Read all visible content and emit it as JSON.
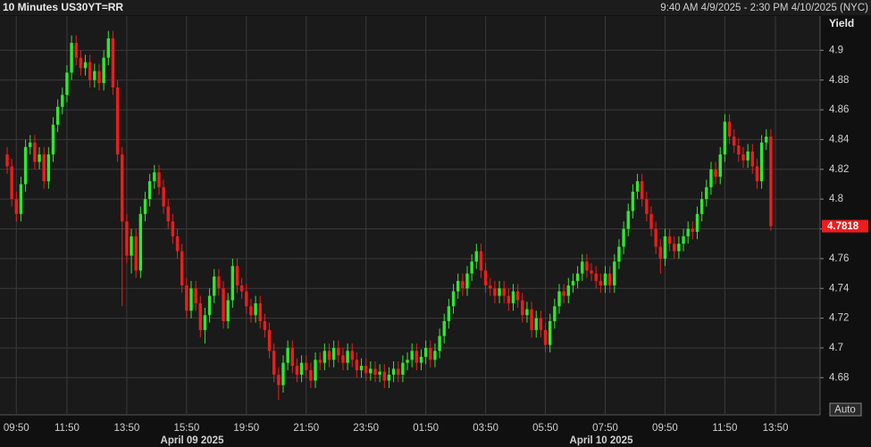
{
  "chart_data": {
    "type": "candlestick",
    "title": "10 Minutes US30YT=RR",
    "subtitle": "9:40 AM 4/9/2025 - 2:30 PM 4/10/2025 (NYC)",
    "y_label": "Yield",
    "button": "Auto",
    "up_color": "#2ee82e",
    "down_color": "#ee1c1c",
    "grid": true,
    "ylim": [
      4.655,
      4.923
    ],
    "yticks": [
      4.68,
      4.7,
      4.72,
      4.74,
      4.76,
      4.78,
      4.8,
      4.82,
      4.84,
      4.86,
      4.88,
      4.9
    ],
    "last_value": 4.7818,
    "date_labels": [
      "April 09 2025",
      "April 10 2025"
    ],
    "categories": [
      null,
      null,
      "09:50",
      null,
      null,
      null,
      null,
      null,
      null,
      null,
      null,
      null,
      null,
      "11:50",
      null,
      null,
      null,
      null,
      null,
      null,
      null,
      null,
      null,
      null,
      null,
      null,
      "13:50",
      null,
      null,
      null,
      null,
      null,
      null,
      null,
      null,
      null,
      null,
      null,
      null,
      "15:50",
      null,
      null,
      null,
      null,
      null,
      null,
      null,
      null,
      null,
      null,
      null,
      null,
      "19:50",
      null,
      null,
      null,
      null,
      null,
      null,
      null,
      null,
      null,
      null,
      null,
      null,
      "21:50",
      null,
      null,
      null,
      null,
      null,
      null,
      null,
      null,
      null,
      null,
      null,
      null,
      "23:50",
      null,
      null,
      null,
      null,
      null,
      null,
      null,
      null,
      null,
      null,
      null,
      null,
      "01:50",
      null,
      null,
      null,
      null,
      null,
      null,
      null,
      null,
      null,
      null,
      null,
      null,
      "03:50",
      null,
      null,
      null,
      null,
      null,
      null,
      null,
      null,
      null,
      null,
      null,
      null,
      "05:50",
      null,
      null,
      null,
      null,
      null,
      null,
      null,
      null,
      null,
      null,
      null,
      null,
      "07:50",
      null,
      null,
      null,
      null,
      null,
      null,
      null,
      null,
      null,
      null,
      null,
      null,
      "09:50",
      null,
      null,
      null,
      null,
      null,
      null,
      null,
      null,
      null,
      null,
      null,
      null,
      "11:50",
      null,
      null,
      null,
      null,
      null,
      null,
      null,
      null,
      null,
      null,
      "13:50"
    ],
    "ohlc": [
      [
        4.83,
        4.835,
        4.817,
        4.822
      ],
      [
        4.822,
        4.827,
        4.795,
        4.8
      ],
      [
        4.8,
        4.805,
        4.785,
        4.79
      ],
      [
        4.79,
        4.815,
        4.785,
        4.81
      ],
      [
        4.81,
        4.84,
        4.805,
        4.835
      ],
      [
        4.835,
        4.843,
        4.83,
        4.838
      ],
      [
        4.838,
        4.843,
        4.82,
        4.825
      ],
      [
        4.825,
        4.835,
        4.82,
        4.83
      ],
      [
        4.83,
        4.835,
        4.807,
        4.812
      ],
      [
        4.812,
        4.835,
        4.807,
        4.83
      ],
      [
        4.83,
        4.855,
        4.825,
        4.85
      ],
      [
        4.85,
        4.867,
        4.845,
        4.862
      ],
      [
        4.862,
        4.875,
        4.857,
        4.87
      ],
      [
        4.87,
        4.89,
        4.865,
        4.885
      ],
      [
        4.885,
        4.91,
        4.88,
        4.905
      ],
      [
        4.905,
        4.91,
        4.89,
        4.895
      ],
      [
        4.895,
        4.9,
        4.883,
        4.888
      ],
      [
        4.888,
        4.897,
        4.883,
        4.892
      ],
      [
        4.892,
        4.897,
        4.875,
        4.88
      ],
      [
        4.88,
        4.891,
        4.875,
        4.886
      ],
      [
        4.886,
        4.891,
        4.873,
        4.878
      ],
      [
        4.878,
        4.9,
        4.873,
        4.895
      ],
      [
        4.895,
        4.913,
        4.89,
        4.908
      ],
      [
        4.908,
        4.913,
        4.87,
        4.875
      ],
      [
        4.875,
        4.88,
        4.825,
        4.83
      ],
      [
        4.83,
        4.835,
        4.728,
        4.785
      ],
      [
        4.785,
        4.79,
        4.757,
        4.762
      ],
      [
        4.762,
        4.78,
        4.75,
        4.775
      ],
      [
        4.775,
        4.78,
        4.747,
        4.752
      ],
      [
        4.752,
        4.795,
        4.747,
        4.79
      ],
      [
        4.79,
        4.805,
        4.785,
        4.8
      ],
      [
        4.8,
        4.817,
        4.795,
        4.812
      ],
      [
        4.812,
        4.823,
        4.807,
        4.818
      ],
      [
        4.818,
        4.823,
        4.803,
        4.808
      ],
      [
        4.808,
        4.813,
        4.79,
        4.795
      ],
      [
        4.795,
        4.8,
        4.78,
        4.785
      ],
      [
        4.785,
        4.79,
        4.77,
        4.775
      ],
      [
        4.775,
        4.78,
        4.76,
        4.765
      ],
      [
        4.765,
        4.77,
        4.737,
        4.742
      ],
      [
        4.742,
        4.747,
        4.72,
        4.725
      ],
      [
        4.725,
        4.745,
        4.72,
        4.74
      ],
      [
        4.74,
        4.745,
        4.725,
        4.73
      ],
      [
        4.73,
        4.735,
        4.707,
        4.712
      ],
      [
        4.712,
        4.727,
        4.703,
        4.722
      ],
      [
        4.722,
        4.74,
        4.717,
        4.735
      ],
      [
        4.735,
        4.753,
        4.73,
        4.748
      ],
      [
        4.748,
        4.753,
        4.735,
        4.74
      ],
      [
        4.74,
        4.745,
        4.713,
        4.718
      ],
      [
        4.718,
        4.737,
        4.713,
        4.732
      ],
      [
        4.732,
        4.76,
        4.727,
        4.755
      ],
      [
        4.755,
        4.76,
        4.737,
        4.742
      ],
      [
        4.742,
        4.747,
        4.733,
        4.738
      ],
      [
        4.738,
        4.743,
        4.723,
        4.728
      ],
      [
        4.728,
        4.733,
        4.717,
        4.722
      ],
      [
        4.722,
        4.735,
        4.717,
        4.73
      ],
      [
        4.73,
        4.735,
        4.713,
        4.718
      ],
      [
        4.718,
        4.723,
        4.707,
        4.712
      ],
      [
        4.712,
        4.717,
        4.693,
        4.698
      ],
      [
        4.698,
        4.703,
        4.677,
        4.682
      ],
      [
        4.682,
        4.687,
        4.665,
        4.675
      ],
      [
        4.675,
        4.695,
        4.67,
        4.69
      ],
      [
        4.69,
        4.705,
        4.685,
        4.7
      ],
      [
        4.7,
        4.705,
        4.683,
        4.688
      ],
      [
        4.688,
        4.693,
        4.677,
        4.682
      ],
      [
        4.682,
        4.695,
        4.677,
        4.69
      ],
      [
        4.69,
        4.695,
        4.68,
        4.685
      ],
      [
        4.685,
        4.69,
        4.673,
        4.678
      ],
      [
        4.678,
        4.697,
        4.673,
        4.692
      ],
      [
        4.692,
        4.697,
        4.685,
        4.69
      ],
      [
        4.69,
        4.703,
        4.685,
        4.698
      ],
      [
        4.698,
        4.703,
        4.687,
        4.692
      ],
      [
        4.692,
        4.705,
        4.687,
        4.7
      ],
      [
        4.7,
        4.705,
        4.69,
        4.695
      ],
      [
        4.695,
        4.7,
        4.685,
        4.69
      ],
      [
        4.69,
        4.703,
        4.685,
        4.698
      ],
      [
        4.698,
        4.703,
        4.687,
        4.692
      ],
      [
        4.692,
        4.697,
        4.68,
        4.685
      ],
      [
        4.685,
        4.693,
        4.68,
        4.688
      ],
      [
        4.688,
        4.693,
        4.678,
        4.683
      ],
      [
        4.683,
        4.691,
        4.678,
        4.686
      ],
      [
        4.686,
        4.691,
        4.677,
        4.682
      ],
      [
        4.682,
        4.689,
        4.677,
        4.684
      ],
      [
        4.684,
        4.689,
        4.673,
        4.678
      ],
      [
        4.678,
        4.687,
        4.673,
        4.682
      ],
      [
        4.682,
        4.691,
        4.677,
        4.686
      ],
      [
        4.686,
        4.691,
        4.677,
        4.682
      ],
      [
        4.682,
        4.695,
        4.677,
        4.69
      ],
      [
        4.69,
        4.697,
        4.685,
        4.692
      ],
      [
        4.692,
        4.703,
        4.687,
        4.698
      ],
      [
        4.698,
        4.703,
        4.685,
        4.69
      ],
      [
        4.69,
        4.699,
        4.685,
        4.694
      ],
      [
        4.694,
        4.705,
        4.689,
        4.7
      ],
      [
        4.7,
        4.705,
        4.687,
        4.692
      ],
      [
        4.692,
        4.703,
        4.687,
        4.698
      ],
      [
        4.698,
        4.713,
        4.693,
        4.708
      ],
      [
        4.708,
        4.723,
        4.703,
        4.718
      ],
      [
        4.718,
        4.733,
        4.713,
        4.728
      ],
      [
        4.728,
        4.743,
        4.723,
        4.738
      ],
      [
        4.738,
        4.75,
        4.733,
        4.745
      ],
      [
        4.745,
        4.75,
        4.735,
        4.74
      ],
      [
        4.74,
        4.755,
        4.735,
        4.75
      ],
      [
        4.75,
        4.763,
        4.745,
        4.758
      ],
      [
        4.758,
        4.77,
        4.753,
        4.765
      ],
      [
        4.765,
        4.77,
        4.747,
        4.752
      ],
      [
        4.752,
        4.757,
        4.737,
        4.742
      ],
      [
        4.742,
        4.747,
        4.735,
        4.74
      ],
      [
        4.74,
        4.745,
        4.73,
        4.735
      ],
      [
        4.735,
        4.745,
        4.73,
        4.74
      ],
      [
        4.74,
        4.745,
        4.73,
        4.735
      ],
      [
        4.735,
        4.74,
        4.725,
        4.73
      ],
      [
        4.73,
        4.743,
        4.725,
        4.738
      ],
      [
        4.738,
        4.743,
        4.727,
        4.732
      ],
      [
        4.732,
        4.737,
        4.717,
        4.722
      ],
      [
        4.722,
        4.731,
        4.717,
        4.726
      ],
      [
        4.726,
        4.731,
        4.707,
        4.712
      ],
      [
        4.712,
        4.725,
        4.707,
        4.72
      ],
      [
        4.72,
        4.725,
        4.707,
        4.712
      ],
      [
        4.712,
        4.717,
        4.697,
        4.702
      ],
      [
        4.702,
        4.723,
        4.697,
        4.718
      ],
      [
        4.718,
        4.733,
        4.713,
        4.728
      ],
      [
        4.728,
        4.743,
        4.723,
        4.738
      ],
      [
        4.738,
        4.743,
        4.73,
        4.735
      ],
      [
        4.735,
        4.747,
        4.73,
        4.742
      ],
      [
        4.742,
        4.75,
        4.737,
        4.745
      ],
      [
        4.745,
        4.755,
        4.74,
        4.75
      ],
      [
        4.75,
        4.763,
        4.745,
        4.758
      ],
      [
        4.758,
        4.763,
        4.747,
        4.752
      ],
      [
        4.752,
        4.757,
        4.745,
        4.75
      ],
      [
        4.75,
        4.755,
        4.74,
        4.745
      ],
      [
        4.745,
        4.75,
        4.737,
        4.742
      ],
      [
        4.742,
        4.755,
        4.737,
        4.75
      ],
      [
        4.75,
        4.755,
        4.737,
        4.742
      ],
      [
        4.742,
        4.763,
        4.737,
        4.758
      ],
      [
        4.758,
        4.773,
        4.753,
        4.768
      ],
      [
        4.768,
        4.785,
        4.763,
        4.78
      ],
      [
        4.78,
        4.797,
        4.775,
        4.792
      ],
      [
        4.792,
        4.81,
        4.787,
        4.805
      ],
      [
        4.805,
        4.817,
        4.8,
        4.812
      ],
      [
        4.812,
        4.817,
        4.795,
        4.8
      ],
      [
        4.8,
        4.805,
        4.785,
        4.79
      ],
      [
        4.79,
        4.795,
        4.775,
        4.78
      ],
      [
        4.78,
        4.785,
        4.763,
        4.768
      ],
      [
        4.768,
        4.773,
        4.75,
        4.76
      ],
      [
        4.76,
        4.78,
        4.755,
        4.775
      ],
      [
        4.775,
        4.78,
        4.765,
        4.77
      ],
      [
        4.77,
        4.775,
        4.76,
        4.765
      ],
      [
        4.765,
        4.775,
        4.76,
        4.77
      ],
      [
        4.77,
        4.78,
        4.765,
        4.775
      ],
      [
        4.775,
        4.785,
        4.77,
        4.78
      ],
      [
        4.78,
        4.785,
        4.773,
        4.778
      ],
      [
        4.778,
        4.795,
        4.773,
        4.79
      ],
      [
        4.79,
        4.805,
        4.785,
        4.8
      ],
      [
        4.8,
        4.813,
        4.795,
        4.808
      ],
      [
        4.808,
        4.825,
        4.803,
        4.82
      ],
      [
        4.82,
        4.825,
        4.81,
        4.815
      ],
      [
        4.815,
        4.835,
        4.81,
        4.83
      ],
      [
        4.83,
        4.857,
        4.825,
        4.852
      ],
      [
        4.852,
        4.857,
        4.837,
        4.842
      ],
      [
        4.842,
        4.847,
        4.831,
        4.836
      ],
      [
        4.836,
        4.841,
        4.825,
        4.83
      ],
      [
        4.83,
        4.835,
        4.821,
        4.826
      ],
      [
        4.826,
        4.837,
        4.821,
        4.832
      ],
      [
        4.832,
        4.837,
        4.817,
        4.822
      ],
      [
        4.822,
        4.827,
        4.807,
        4.812
      ],
      [
        4.812,
        4.843,
        4.807,
        4.838
      ],
      [
        4.838,
        4.847,
        4.833,
        4.842
      ],
      [
        4.842,
        4.847,
        4.7788,
        4.7818
      ],
      null
    ]
  }
}
